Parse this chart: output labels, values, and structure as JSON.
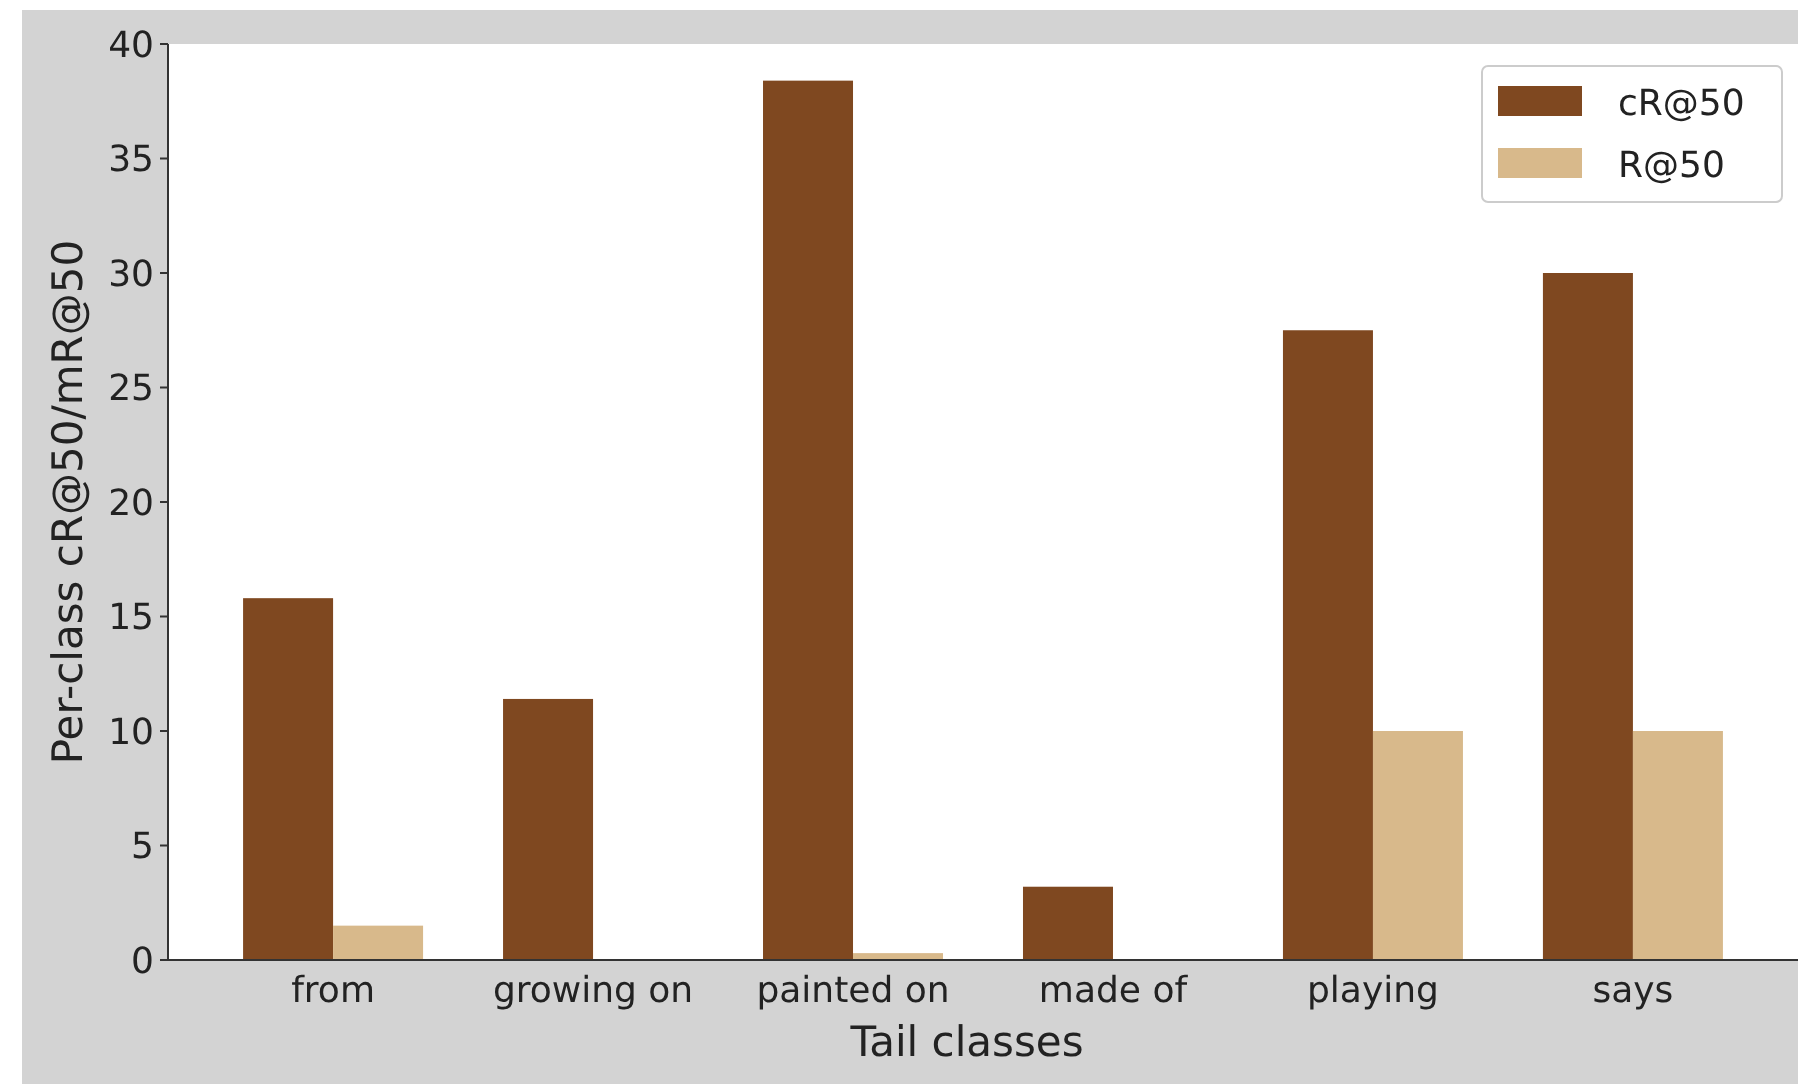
{
  "chart_data": {
    "type": "bar",
    "xlabel": "Tail classes",
    "ylabel": "Per-class cR@50/mR@50",
    "categories": [
      "from",
      "growing on",
      "painted on",
      "made of",
      "playing",
      "says"
    ],
    "series": [
      {
        "name": "cR@50",
        "color": "#7f4820",
        "values": [
          15.8,
          11.4,
          38.4,
          3.2,
          27.5,
          30.0
        ]
      },
      {
        "name": "R@50",
        "color": "#d8b98b",
        "values": [
          1.5,
          0,
          0.3,
          0,
          10,
          10
        ]
      }
    ],
    "ylim": [
      0,
      40
    ],
    "yticks": [
      0,
      5,
      10,
      15,
      20,
      25,
      30,
      35,
      40
    ],
    "grid": false,
    "legend": "top right"
  }
}
